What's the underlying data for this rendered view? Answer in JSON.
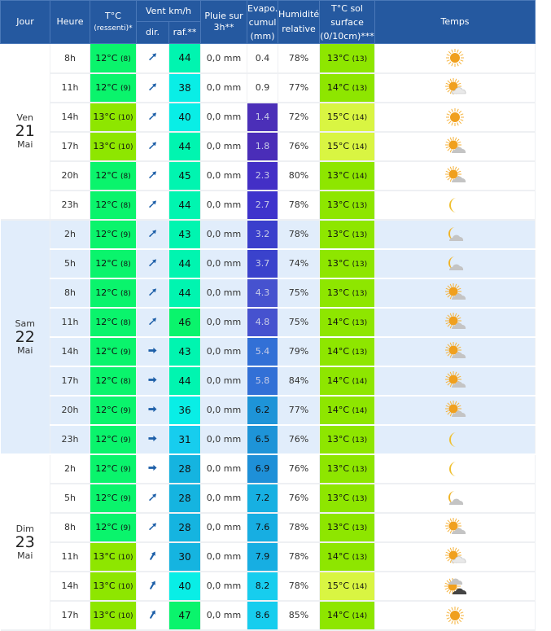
{
  "header": {
    "jour": "Jour",
    "heure": "Heure",
    "temp": "T°C",
    "temp_sub": "(ressenti)*",
    "vent": "Vent km/h",
    "dir": "dir.",
    "raf": "raf.**",
    "pluie_1": "Pluie sur",
    "pluie_2": "3h**",
    "evapo_1": "Evapo.",
    "evapo_2": "cumul",
    "evapo_3": "(mm)",
    "hum_1": "Humidité",
    "hum_2": "relative",
    "sol_1": "T°C sol",
    "sol_2": "surface",
    "sol_3": "(0/10cm)***",
    "temps": "Temps"
  },
  "days": [
    {
      "name": "Ven",
      "num": "21",
      "month": "Mai",
      "alt": false,
      "rows": [
        {
          "h": "8h",
          "t": "12°C",
          "tr": "(8)",
          "tc": "#0af46c",
          "dir": "ne",
          "raf": "44",
          "rc": "#00f5b0",
          "rain": "0,0 mm",
          "ev": "0.4",
          "ec": "",
          "hum": "78%",
          "sol": "13°C",
          "solr": "(13)",
          "sc": "#8ee600",
          "icon": "sun"
        },
        {
          "h": "11h",
          "t": "12°C",
          "tr": "(9)",
          "tc": "#0af46c",
          "dir": "ne",
          "raf": "38",
          "rc": "#09eee6",
          "rain": "0,0 mm",
          "ev": "0.9",
          "ec": "",
          "hum": "77%",
          "sol": "14°C",
          "solr": "(13)",
          "sc": "#8ee600",
          "icon": "sun-cloud-light"
        },
        {
          "h": "14h",
          "t": "13°C",
          "tr": "(10)",
          "tc": "#8ee600",
          "dir": "ne",
          "raf": "40",
          "rc": "#09eee6",
          "rain": "0,0 mm",
          "ev": "1.4",
          "ec": "#4b2fb8",
          "hum": "72%",
          "sol": "15°C",
          "solr": "(14)",
          "sc": "#d9f542",
          "icon": "sun"
        },
        {
          "h": "17h",
          "t": "13°C",
          "tr": "(10)",
          "tc": "#8ee600",
          "dir": "ne",
          "raf": "44",
          "rc": "#00f5b0",
          "rain": "0,0 mm",
          "ev": "1.8",
          "ec": "#4a2db8",
          "hum": "76%",
          "sol": "15°C",
          "solr": "(14)",
          "sc": "#d9f542",
          "icon": "sun-cloud"
        },
        {
          "h": "20h",
          "t": "12°C",
          "tr": "(8)",
          "tc": "#0af46c",
          "dir": "ne",
          "raf": "45",
          "rc": "#00f5b0",
          "rain": "0,0 mm",
          "ev": "2.3",
          "ec": "#432fc6",
          "hum": "80%",
          "sol": "13°C",
          "solr": "(14)",
          "sc": "#8ee600",
          "icon": "sun-cloud"
        },
        {
          "h": "23h",
          "t": "12°C",
          "tr": "(8)",
          "tc": "#0af46c",
          "dir": "ne",
          "raf": "44",
          "rc": "#00f5b0",
          "rain": "0,0 mm",
          "ev": "2.7",
          "ec": "#3e33cc",
          "hum": "78%",
          "sol": "13°C",
          "solr": "(13)",
          "sc": "#8ee600",
          "icon": "moon"
        }
      ]
    },
    {
      "name": "Sam",
      "num": "22",
      "month": "Mai",
      "alt": true,
      "rows": [
        {
          "h": "2h",
          "t": "12°C",
          "tr": "(9)",
          "tc": "#0af46c",
          "dir": "ne",
          "raf": "43",
          "rc": "#00f5b0",
          "rain": "0,0 mm",
          "ev": "3.2",
          "ec": "#3a3fcc",
          "hum": "78%",
          "sol": "13°C",
          "solr": "(13)",
          "sc": "#8ee600",
          "icon": "moon-cloud"
        },
        {
          "h": "5h",
          "t": "12°C",
          "tr": "(8)",
          "tc": "#0af46c",
          "dir": "ne",
          "raf": "44",
          "rc": "#00f5b0",
          "rain": "0,0 mm",
          "ev": "3.7",
          "ec": "#3a42cc",
          "hum": "74%",
          "sol": "13°C",
          "solr": "(13)",
          "sc": "#8ee600",
          "icon": "moon-cloud"
        },
        {
          "h": "8h",
          "t": "12°C",
          "tr": "(8)",
          "tc": "#0af46c",
          "dir": "ne",
          "raf": "44",
          "rc": "#00f5b0",
          "rain": "0,0 mm",
          "ev": "4.3",
          "ec": "#4652cf",
          "hum": "75%",
          "sol": "13°C",
          "solr": "(13)",
          "sc": "#8ee600",
          "icon": "sun-cloud"
        },
        {
          "h": "11h",
          "t": "12°C",
          "tr": "(8)",
          "tc": "#0af46c",
          "dir": "ne",
          "raf": "46",
          "rc": "#0af46c",
          "rain": "0,0 mm",
          "ev": "4.8",
          "ec": "#4652cf",
          "hum": "75%",
          "sol": "14°C",
          "solr": "(13)",
          "sc": "#8ee600",
          "icon": "sun-cloud"
        },
        {
          "h": "14h",
          "t": "12°C",
          "tr": "(9)",
          "tc": "#0af46c",
          "dir": "e",
          "raf": "43",
          "rc": "#00f5b0",
          "rain": "0,0 mm",
          "ev": "5.4",
          "ec": "#3270d6",
          "hum": "79%",
          "sol": "14°C",
          "solr": "(13)",
          "sc": "#8ee600",
          "icon": "sun-cloud"
        },
        {
          "h": "17h",
          "t": "12°C",
          "tr": "(8)",
          "tc": "#0af46c",
          "dir": "e",
          "raf": "44",
          "rc": "#00f5b0",
          "rain": "0,0 mm",
          "ev": "5.8",
          "ec": "#3270d6",
          "hum": "84%",
          "sol": "14°C",
          "solr": "(14)",
          "sc": "#8ee600",
          "icon": "sun-cloud"
        },
        {
          "h": "20h",
          "t": "12°C",
          "tr": "(9)",
          "tc": "#0af46c",
          "dir": "e",
          "raf": "36",
          "rc": "#09eee6",
          "rain": "0,0 mm",
          "ev": "6.2",
          "ec": "#1e94d8",
          "hum": "77%",
          "sol": "14°C",
          "solr": "(14)",
          "sc": "#8ee600",
          "icon": "sun-cloud"
        },
        {
          "h": "23h",
          "t": "12°C",
          "tr": "(9)",
          "tc": "#0af46c",
          "dir": "e",
          "raf": "31",
          "rc": "#17cdee",
          "rain": "0,0 mm",
          "ev": "6.5",
          "ec": "#1e94d8",
          "hum": "76%",
          "sol": "13°C",
          "solr": "(13)",
          "sc": "#8ee600",
          "icon": "moon"
        }
      ]
    },
    {
      "name": "Dim",
      "num": "23",
      "month": "Mai",
      "alt": false,
      "rows": [
        {
          "h": "2h",
          "t": "12°C",
          "tr": "(9)",
          "tc": "#0af46c",
          "dir": "e",
          "raf": "28",
          "rc": "#15b4e0",
          "rain": "0,0 mm",
          "ev": "6.9",
          "ec": "#1e90d8",
          "hum": "76%",
          "sol": "13°C",
          "solr": "(13)",
          "sc": "#8ee600",
          "icon": "moon"
        },
        {
          "h": "5h",
          "t": "12°C",
          "tr": "(9)",
          "tc": "#0af46c",
          "dir": "ne",
          "raf": "28",
          "rc": "#15b4e0",
          "rain": "0,0 mm",
          "ev": "7.2",
          "ec": "#17b0e2",
          "hum": "76%",
          "sol": "13°C",
          "solr": "(13)",
          "sc": "#8ee600",
          "icon": "moon-cloud"
        },
        {
          "h": "8h",
          "t": "12°C",
          "tr": "(9)",
          "tc": "#0af46c",
          "dir": "ne",
          "raf": "28",
          "rc": "#15b4e0",
          "rain": "0,0 mm",
          "ev": "7.6",
          "ec": "#17aee2",
          "hum": "78%",
          "sol": "13°C",
          "solr": "(13)",
          "sc": "#8ee600",
          "icon": "sun-cloud"
        },
        {
          "h": "11h",
          "t": "13°C",
          "tr": "(10)",
          "tc": "#8ee600",
          "dir": "nne",
          "raf": "30",
          "rc": "#15b4e0",
          "rain": "0,0 mm",
          "ev": "7.9",
          "ec": "#17aee2",
          "hum": "78%",
          "sol": "14°C",
          "solr": "(13)",
          "sc": "#8ee600",
          "icon": "sun-cloud-light"
        },
        {
          "h": "14h",
          "t": "13°C",
          "tr": "(10)",
          "tc": "#8ee600",
          "dir": "nne",
          "raf": "40",
          "rc": "#09eee6",
          "rain": "0,0 mm",
          "ev": "8.2",
          "ec": "#17cdee",
          "hum": "78%",
          "sol": "15°C",
          "solr": "(14)",
          "sc": "#d9f542",
          "icon": "sun-dark-cloud"
        },
        {
          "h": "17h",
          "t": "13°C",
          "tr": "(10)",
          "tc": "#8ee600",
          "dir": "nne",
          "raf": "47",
          "rc": "#0af46c",
          "rain": "0,0 mm",
          "ev": "8.6",
          "ec": "#17cdee",
          "hum": "85%",
          "sol": "14°C",
          "solr": "(14)",
          "sc": "#8ee600",
          "icon": "sun"
        }
      ]
    }
  ],
  "colors": {
    "header_bg": "#2559a0",
    "alt_row_bg": "#e1edfb",
    "arrow": "#1d5fa8"
  }
}
